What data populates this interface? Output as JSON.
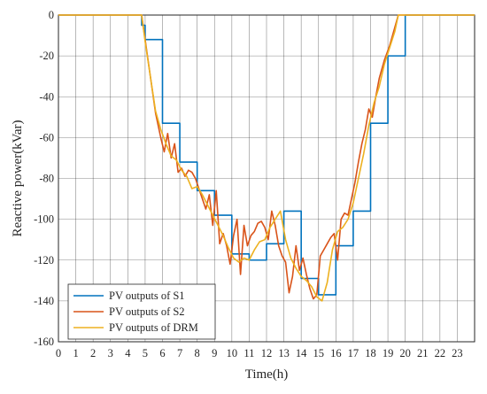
{
  "chart_data": {
    "type": "line",
    "title": "",
    "xlabel": "Time(h)",
    "ylabel": "Reactive power(kVar)",
    "xlim": [
      0,
      24
    ],
    "ylim": [
      -160,
      0
    ],
    "xticks": [
      0,
      1,
      2,
      3,
      4,
      5,
      6,
      7,
      8,
      9,
      10,
      11,
      12,
      13,
      14,
      15,
      16,
      17,
      18,
      19,
      20,
      21,
      22,
      23
    ],
    "yticks": [
      0,
      -20,
      -40,
      -60,
      -80,
      -100,
      -120,
      -140,
      -160
    ],
    "grid": true,
    "legend_position": "bottom-left",
    "series": [
      {
        "name": "PV outputs of S1",
        "color": "#0072BD",
        "step": true,
        "x": [
          0,
          4.8,
          4.8,
          5,
          6,
          7,
          8,
          9,
          10,
          11,
          12,
          13,
          14,
          15,
          16,
          17,
          18,
          19,
          20,
          20,
          24
        ],
        "y": [
          0,
          0,
          -5,
          -12,
          -53,
          -72,
          -86,
          -98,
          -117,
          -120,
          -112,
          -96,
          -129,
          -137,
          -113,
          -96,
          -53,
          -20,
          -20,
          0,
          0
        ]
      },
      {
        "name": "PV outputs of S2",
        "color": "#D95319",
        "step": false,
        "x": [
          0,
          4.8,
          5,
          5.3,
          5.6,
          5.9,
          6.1,
          6.3,
          6.5,
          6.7,
          6.9,
          7.1,
          7.3,
          7.5,
          7.7,
          7.9,
          8.1,
          8.3,
          8.5,
          8.7,
          8.9,
          9.1,
          9.3,
          9.5,
          9.7,
          9.9,
          10.1,
          10.3,
          10.5,
          10.7,
          10.9,
          11.1,
          11.3,
          11.5,
          11.7,
          11.9,
          12.1,
          12.3,
          12.5,
          12.7,
          12.9,
          13.1,
          13.3,
          13.5,
          13.7,
          13.9,
          14.1,
          14.3,
          14.5,
          14.7,
          14.9,
          15.1,
          15.3,
          15.5,
          15.7,
          15.9,
          16.1,
          16.3,
          16.5,
          16.7,
          16.9,
          17.1,
          17.3,
          17.5,
          17.7,
          17.9,
          18.1,
          18.3,
          18.5,
          18.8,
          19.1,
          19.4,
          19.6,
          24
        ],
        "y": [
          0,
          0,
          -12,
          -30,
          -48,
          -60,
          -67,
          -58,
          -70,
          -63,
          -77,
          -75,
          -79,
          -76,
          -77,
          -80,
          -85,
          -90,
          -95,
          -88,
          -103,
          -86,
          -112,
          -107,
          -113,
          -122,
          -108,
          -100,
          -127,
          -103,
          -113,
          -108,
          -106,
          -102,
          -101,
          -104,
          -110,
          -96,
          -103,
          -113,
          -118,
          -121,
          -136,
          -128,
          -113,
          -125,
          -119,
          -127,
          -134,
          -139,
          -137,
          -118,
          -115,
          -112,
          -109,
          -107,
          -120,
          -100,
          -97,
          -98,
          -90,
          -82,
          -72,
          -63,
          -56,
          -46,
          -50,
          -40,
          -31,
          -22,
          -15,
          -6,
          0,
          0
        ]
      },
      {
        "name": "PV outputs of DRM",
        "color": "#EDB120",
        "step": false,
        "x": [
          0,
          4.8,
          5,
          5.3,
          5.6,
          5.9,
          6.2,
          6.5,
          6.8,
          7.1,
          7.4,
          7.7,
          8,
          8.3,
          8.6,
          8.9,
          9.2,
          9.5,
          9.8,
          10.1,
          10.4,
          10.7,
          11,
          11.3,
          11.6,
          11.9,
          12.2,
          12.5,
          12.8,
          13.1,
          13.4,
          13.7,
          14,
          14.3,
          14.6,
          14.9,
          15.2,
          15.5,
          15.8,
          16.1,
          16.4,
          16.7,
          17,
          17.3,
          17.6,
          17.9,
          18.2,
          18.5,
          18.8,
          19.1,
          19.4,
          19.6,
          24
        ],
        "y": [
          0,
          0,
          -13,
          -30,
          -47,
          -56,
          -63,
          -69,
          -71,
          -76,
          -79,
          -85,
          -84,
          -88,
          -93,
          -98,
          -103,
          -108,
          -114,
          -119,
          -121,
          -119,
          -120,
          -115,
          -111,
          -110,
          -104,
          -100,
          -96,
          -110,
          -119,
          -124,
          -128,
          -130,
          -133,
          -138,
          -140,
          -131,
          -115,
          -106,
          -104,
          -100,
          -92,
          -80,
          -68,
          -54,
          -43,
          -35,
          -24,
          -16,
          -8,
          0,
          0
        ]
      }
    ]
  }
}
